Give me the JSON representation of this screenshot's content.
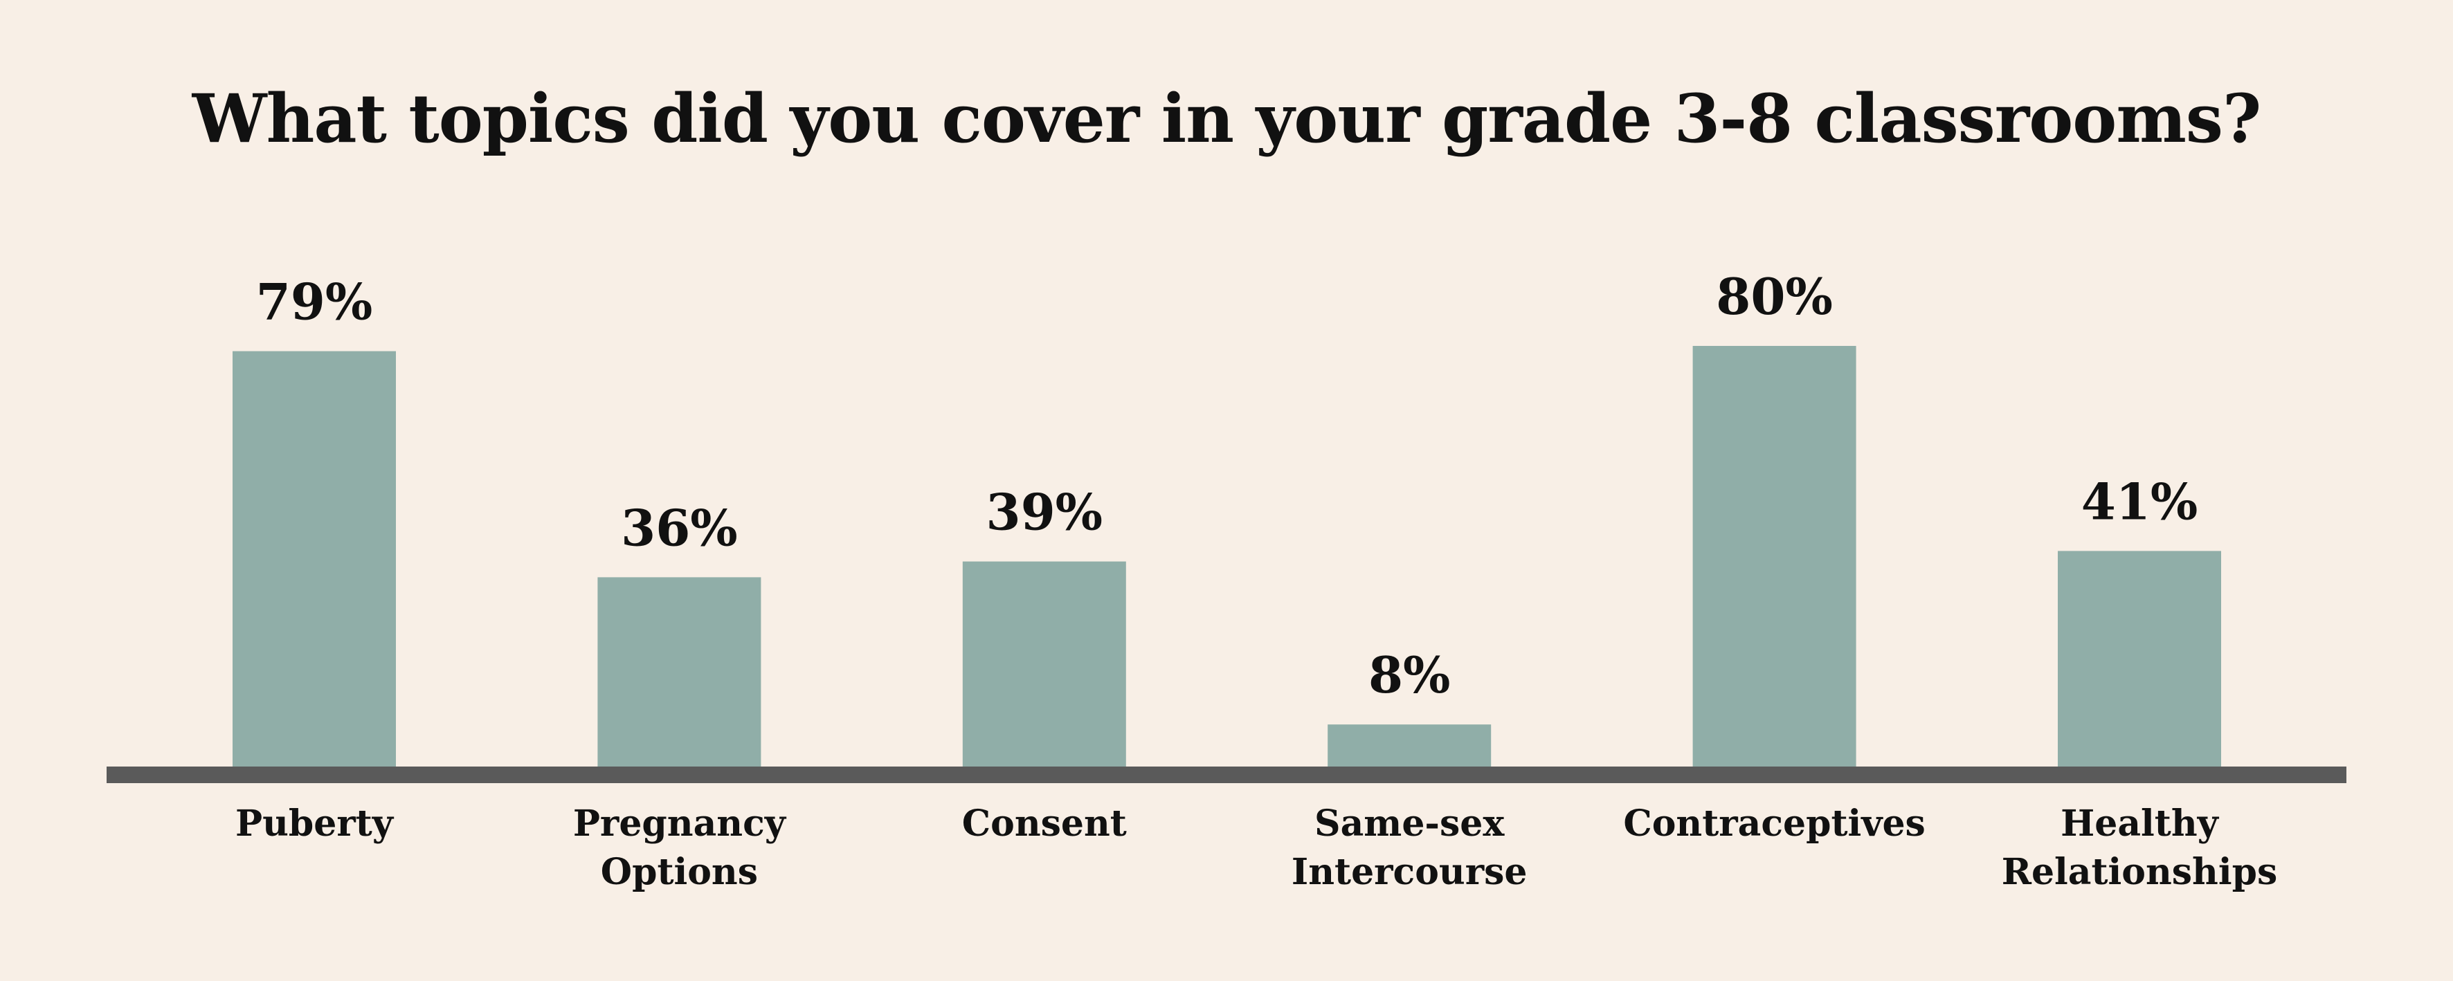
{
  "chart_data": {
    "type": "bar",
    "title": "What topics did you cover in your grade 3-8 classrooms?",
    "categories": [
      [
        "Puberty"
      ],
      [
        "Pregnancy",
        "Options"
      ],
      [
        "Consent"
      ],
      [
        "Same-sex",
        "Intercourse"
      ],
      [
        "Contraceptives"
      ],
      [
        "Healthy",
        "Relationships"
      ]
    ],
    "values": [
      79,
      36,
      39,
      8,
      80,
      41
    ],
    "value_labels": [
      "79%",
      "36%",
      "39%",
      "8%",
      "80%",
      "41%"
    ],
    "colors": {
      "bar": "#90aea8",
      "baseline": "#5a5a5a",
      "background": "#f8efe6",
      "text": "#111111"
    },
    "grid": false,
    "legend": "none"
  }
}
